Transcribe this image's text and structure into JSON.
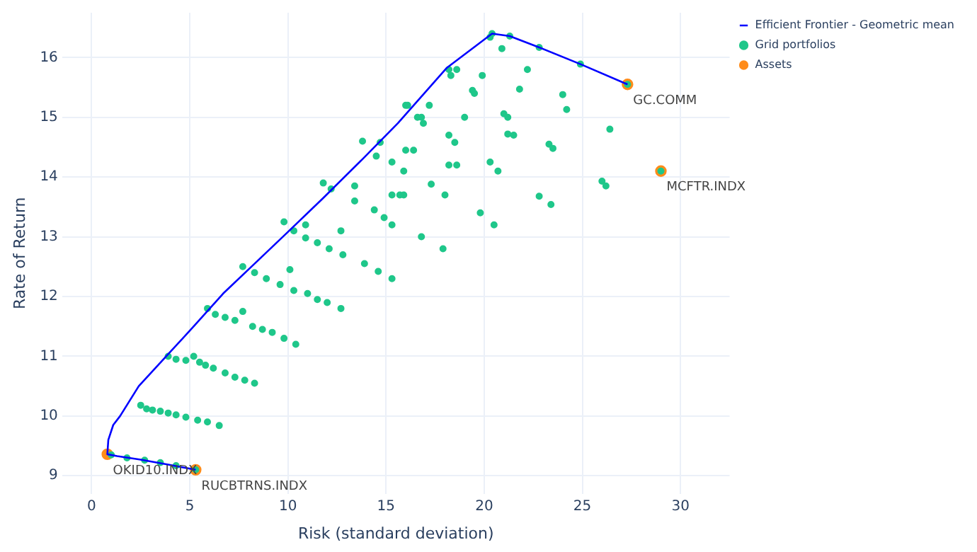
{
  "chart_data": {
    "type": "scatter",
    "xlabel": "Risk (standard deviation)",
    "ylabel": "Rate of Return",
    "xlim": [
      -1.5,
      32.5
    ],
    "ylim": [
      8.7,
      16.75
    ],
    "xticks": [
      0,
      5,
      10,
      15,
      20,
      25,
      30
    ],
    "yticks": [
      9,
      10,
      11,
      12,
      13,
      14,
      15,
      16
    ],
    "grid": true,
    "legend": "top right",
    "series": [
      {
        "name": "Efficient Frontier - Geometric mean",
        "type": "line",
        "marker": "none",
        "color": "#0000ff",
        "x": [
          5.3,
          4.0,
          2.5,
          1.3,
          0.8,
          0.85,
          1.1,
          1.45,
          2.4,
          3.8,
          5.2,
          6.7,
          8.3,
          9.9,
          11.8,
          13.8,
          15.6,
          18.1,
          20.4,
          21.3,
          22.8,
          24.9,
          27.3
        ],
        "values": [
          9.1,
          9.18,
          9.27,
          9.33,
          9.36,
          9.6,
          9.85,
          10.0,
          10.5,
          11.0,
          11.5,
          12.05,
          12.55,
          13.05,
          13.65,
          14.3,
          14.9,
          15.83,
          16.4,
          16.36,
          16.17,
          15.89,
          15.55
        ]
      },
      {
        "name": "Assets",
        "marker": "circle",
        "color": "#ff8c1a",
        "x": [
          0.8,
          5.3,
          27.3,
          29.0
        ],
        "values": [
          9.36,
          9.1,
          15.55,
          14.1
        ]
      },
      {
        "name": "Grid portfolios",
        "marker": "circle",
        "color": "#1fc78a",
        "x": [
          1.0,
          1.8,
          2.7,
          3.5,
          4.3,
          5.3,
          2.5,
          2.8,
          3.1,
          3.5,
          3.9,
          4.3,
          4.8,
          5.4,
          5.9,
          6.5,
          3.9,
          4.3,
          4.8,
          5.2,
          5.5,
          5.8,
          6.2,
          6.8,
          7.3,
          7.8,
          8.3,
          5.9,
          6.3,
          6.8,
          7.3,
          7.7,
          8.2,
          8.7,
          9.2,
          9.8,
          10.4,
          7.7,
          8.3,
          8.9,
          9.6,
          10.3,
          10.1,
          11.0,
          11.5,
          12.0,
          12.7,
          9.8,
          10.3,
          10.9,
          10.9,
          11.5,
          12.1,
          12.8,
          12.7,
          13.9,
          14.6,
          15.3,
          11.8,
          12.2,
          13.4,
          13.4,
          14.4,
          14.9,
          15.3,
          15.3,
          15.9,
          13.8,
          14.5,
          14.7,
          15.3,
          15.9,
          16.0,
          16.4,
          16.0,
          16.8,
          16.8,
          17.9,
          16.1,
          17.2,
          16.6,
          16.9,
          18.2,
          18.6,
          18.3,
          19.9,
          19.4,
          19.5,
          20.4,
          21.3,
          22.8,
          24.9,
          20.3,
          20.9,
          22.2,
          21.8,
          21.0,
          21.2,
          19.0,
          24.0,
          24.2,
          26.4,
          18.2,
          18.5,
          21.2,
          21.5,
          23.3,
          23.5,
          18.2,
          18.6,
          20.3,
          20.7,
          17.3,
          18.0,
          19.8,
          20.5,
          22.8,
          23.4,
          26.0,
          26.2,
          15.7,
          27.3,
          29.0
        ],
        "values": [
          9.35,
          9.3,
          9.26,
          9.22,
          9.17,
          9.1,
          10.18,
          10.12,
          10.1,
          10.08,
          10.05,
          10.02,
          9.98,
          9.93,
          9.9,
          9.84,
          11.0,
          10.95,
          10.93,
          11.0,
          10.9,
          10.85,
          10.8,
          10.72,
          10.65,
          10.6,
          10.55,
          11.8,
          11.7,
          11.65,
          11.6,
          11.75,
          11.5,
          11.45,
          11.4,
          11.3,
          11.2,
          12.5,
          12.4,
          12.3,
          12.2,
          12.1,
          12.45,
          12.05,
          11.95,
          11.9,
          11.8,
          13.25,
          13.1,
          12.98,
          13.2,
          12.9,
          12.8,
          12.7,
          13.1,
          12.55,
          12.42,
          12.3,
          13.9,
          13.8,
          13.6,
          13.85,
          13.45,
          13.32,
          13.2,
          13.7,
          13.7,
          14.6,
          14.35,
          14.58,
          14.25,
          14.1,
          14.45,
          14.45,
          15.2,
          15.0,
          13.0,
          12.8,
          15.2,
          15.2,
          15.0,
          14.9,
          15.8,
          15.8,
          15.7,
          15.7,
          15.45,
          15.4,
          16.4,
          16.36,
          16.17,
          15.89,
          16.34,
          16.15,
          15.8,
          15.47,
          15.06,
          15.0,
          15.0,
          15.38,
          15.13,
          14.8,
          14.7,
          14.58,
          14.72,
          14.7,
          14.55,
          14.48,
          14.2,
          14.2,
          14.25,
          14.1,
          13.88,
          13.7,
          13.4,
          13.2,
          13.68,
          13.54,
          13.93,
          13.85,
          13.7,
          15.55,
          14.1
        ]
      }
    ],
    "annotations": [
      {
        "text": "OKID10.INDX",
        "x": 0.8,
        "y": 9.36
      },
      {
        "text": "RUCBTRNS.INDX",
        "x": 5.3,
        "y": 9.1
      },
      {
        "text": "GC.COMM",
        "x": 27.3,
        "y": 15.55
      },
      {
        "text": "MCFTR.INDX",
        "x": 29.0,
        "y": 14.1
      }
    ]
  }
}
